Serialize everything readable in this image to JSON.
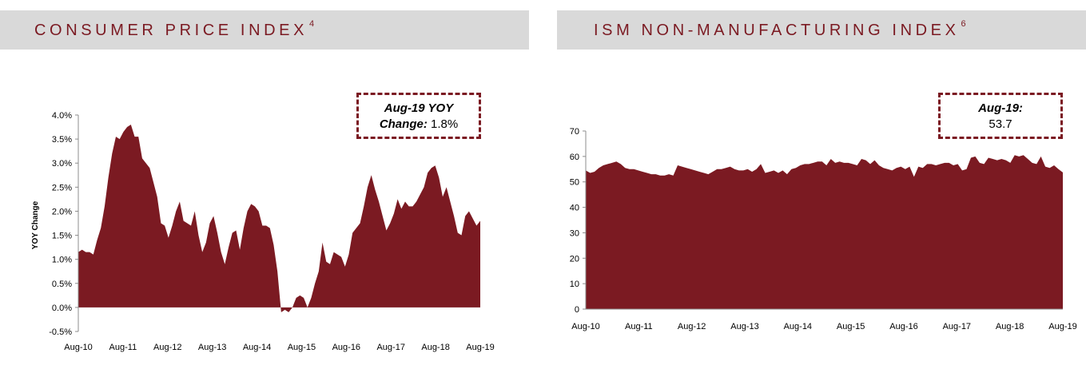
{
  "colors": {
    "brand": "#7b1a22",
    "banner_bg": "#d9d9d9"
  },
  "left_panel": {
    "title": "CONSUMER PRICE INDEX",
    "footnote": "4",
    "callout": {
      "line1": "Aug-19 YOY",
      "line2_bold": "Change:",
      "line2_value": "1.8%"
    }
  },
  "right_panel": {
    "title": "ISM NON-MANUFACTURING INDEX",
    "footnote": "6",
    "callout": {
      "line1": "Aug-19:",
      "line2_value": "53.7"
    }
  },
  "chart_data": [
    {
      "type": "area",
      "title": "CONSUMER PRICE INDEX",
      "xlabel": "",
      "ylabel": "YOY  Change",
      "ylim": [
        -0.5,
        4.0
      ],
      "yticks": [
        "-0.5%",
        "0.0%",
        "0.5%",
        "1.0%",
        "1.5%",
        "2.0%",
        "2.5%",
        "3.0%",
        "3.5%",
        "4.0%"
      ],
      "xticks": [
        "Aug-10",
        "Aug-11",
        "Aug-12",
        "Aug-13",
        "Aug-14",
        "Aug-15",
        "Aug-16",
        "Aug-17",
        "Aug-18",
        "Aug-19"
      ],
      "x_start": "Aug-10",
      "x_end": "Aug-19",
      "values": [
        1.15,
        1.2,
        1.15,
        1.15,
        1.1,
        1.4,
        1.65,
        2.1,
        2.7,
        3.2,
        3.55,
        3.5,
        3.65,
        3.75,
        3.8,
        3.55,
        3.55,
        3.1,
        3.0,
        2.9,
        2.6,
        2.3,
        1.75,
        1.7,
        1.45,
        1.7,
        2.0,
        2.2,
        1.8,
        1.75,
        1.7,
        2.0,
        1.5,
        1.15,
        1.35,
        1.75,
        1.9,
        1.55,
        1.15,
        0.9,
        1.25,
        1.55,
        1.6,
        1.2,
        1.65,
        2.0,
        2.15,
        2.1,
        2.0,
        1.7,
        1.7,
        1.65,
        1.3,
        0.75,
        -0.1,
        -0.05,
        -0.1,
        0.0,
        0.2,
        0.25,
        0.2,
        0.0,
        0.2,
        0.5,
        0.75,
        1.35,
        0.95,
        0.9,
        1.15,
        1.1,
        1.05,
        0.85,
        1.1,
        1.55,
        1.65,
        1.75,
        2.1,
        2.5,
        2.75,
        2.45,
        2.2,
        1.9,
        1.6,
        1.75,
        1.95,
        2.25,
        2.05,
        2.2,
        2.1,
        2.1,
        2.2,
        2.35,
        2.5,
        2.8,
        2.9,
        2.95,
        2.7,
        2.3,
        2.5,
        2.2,
        1.9,
        1.55,
        1.5,
        1.9,
        2.0,
        1.85,
        1.7,
        1.8
      ]
    },
    {
      "type": "area",
      "title": "ISM NON-MANUFACTURING INDEX",
      "xlabel": "",
      "ylabel": "",
      "ylim": [
        0,
        70
      ],
      "yticks": [
        "0",
        "10",
        "20",
        "30",
        "40",
        "50",
        "60",
        "70"
      ],
      "xticks": [
        "Aug-10",
        "Aug-11",
        "Aug-12",
        "Aug-13",
        "Aug-14",
        "Aug-15",
        "Aug-16",
        "Aug-17",
        "Aug-18",
        "Aug-19"
      ],
      "x_start": "Aug-10",
      "x_end": "Aug-19",
      "values": [
        54.5,
        53.5,
        54.0,
        55.5,
        56.5,
        57.0,
        57.5,
        58.0,
        57.0,
        55.5,
        55.0,
        55.0,
        54.5,
        54.0,
        53.5,
        53.0,
        53.0,
        52.5,
        52.5,
        53.0,
        52.5,
        56.5,
        56.0,
        55.5,
        55.0,
        54.5,
        54.0,
        53.5,
        53.0,
        54.0,
        55.0,
        55.0,
        55.5,
        56.0,
        55.0,
        54.5,
        54.5,
        55.0,
        54.0,
        55.0,
        57.0,
        53.5,
        54.0,
        54.5,
        53.5,
        54.5,
        53.0,
        55.0,
        55.5,
        56.5,
        57.0,
        57.0,
        57.5,
        58.0,
        58.0,
        56.5,
        59.0,
        57.5,
        58.0,
        57.5,
        57.5,
        57.0,
        56.5,
        59.0,
        58.5,
        57.0,
        58.5,
        56.5,
        55.5,
        55.0,
        54.5,
        55.5,
        56.0,
        55.0,
        56.0,
        52.0,
        56.0,
        55.5,
        57.0,
        57.0,
        56.5,
        57.0,
        57.5,
        57.5,
        56.5,
        57.0,
        54.5,
        55.0,
        59.5,
        60.0,
        57.5,
        57.0,
        59.5,
        59.0,
        58.5,
        59.0,
        58.5,
        57.5,
        60.5,
        60.0,
        60.5,
        59.0,
        57.5,
        57.0,
        60.0,
        56.0,
        55.5,
        56.5,
        55.0,
        53.7
      ]
    }
  ]
}
